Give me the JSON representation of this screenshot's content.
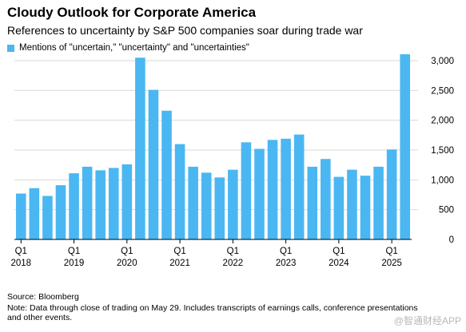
{
  "header": {
    "title": "Cloudy Outlook for Corporate America",
    "subtitle": "References to uncertainty by S&P 500 companies soar during trade war"
  },
  "footer": {
    "source": "Source: Bloomberg",
    "note": "Note: Data through close of trading on May 29. Includes transcripts of earnings calls, conference presentations and other events.",
    "watermark": "@智通财经APP"
  },
  "colors": {
    "bar": "#4ab7f2",
    "grid": "#d9d9d9",
    "axis": "#000000"
  },
  "chart_data": {
    "type": "bar",
    "title": "Cloudy Outlook for Corporate America",
    "subtitle": "References to uncertainty by S&P 500 companies soar during trade war",
    "legend_position": "top-left",
    "grid": true,
    "ylim": [
      0,
      3000
    ],
    "yticks": [
      0,
      500,
      1000,
      1500,
      2000,
      2500,
      3000
    ],
    "ytick_labels": [
      "0",
      "500",
      "1,000",
      "1,500",
      "2,000",
      "2,500",
      "3,000"
    ],
    "y_axis_side": "right",
    "categories": [
      "2018 Q1",
      "2018 Q2",
      "2018 Q3",
      "2018 Q4",
      "2019 Q1",
      "2019 Q2",
      "2019 Q3",
      "2019 Q4",
      "2020 Q1",
      "2020 Q2",
      "2020 Q3",
      "2020 Q4",
      "2021 Q1",
      "2021 Q2",
      "2021 Q3",
      "2021 Q4",
      "2022 Q1",
      "2022 Q2",
      "2022 Q3",
      "2022 Q4",
      "2023 Q1",
      "2023 Q2",
      "2023 Q3",
      "2023 Q4",
      "2024 Q1",
      "2024 Q2",
      "2024 Q3",
      "2024 Q4",
      "2025 Q1",
      "2025 Q2"
    ],
    "x_tick_labels": [
      {
        "index": 0,
        "top": "Q1",
        "bottom": "2018"
      },
      {
        "index": 4,
        "top": "Q1",
        "bottom": "2019"
      },
      {
        "index": 8,
        "top": "Q1",
        "bottom": "2020"
      },
      {
        "index": 12,
        "top": "Q1",
        "bottom": "2021"
      },
      {
        "index": 16,
        "top": "Q1",
        "bottom": "2022"
      },
      {
        "index": 20,
        "top": "Q1",
        "bottom": "2023"
      },
      {
        "index": 24,
        "top": "Q1",
        "bottom": "2024"
      },
      {
        "index": 28,
        "top": "Q1",
        "bottom": "2025"
      }
    ],
    "series": [
      {
        "name": "Mentions of \"uncertain,\" \"uncertainty\" and \"uncertainties\"",
        "values": [
          770,
          860,
          730,
          910,
          1110,
          1220,
          1160,
          1200,
          1260,
          3050,
          2510,
          2160,
          1600,
          1220,
          1120,
          1040,
          1170,
          1630,
          1520,
          1670,
          1690,
          1760,
          1220,
          1350,
          1050,
          1170,
          1070,
          1220,
          1510,
          3160
        ]
      }
    ]
  }
}
